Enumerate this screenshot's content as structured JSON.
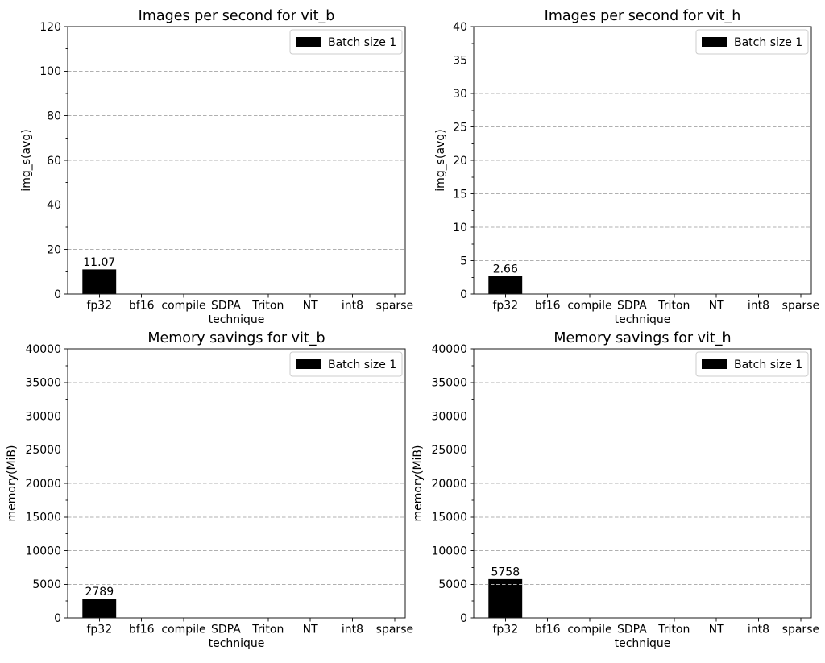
{
  "figure": {
    "description": "2x2 grid of bar charts benchmarking ViT models",
    "colors": {
      "background": "#ffffff",
      "bar": "#000000",
      "grid": "#b0b0b0",
      "spine": "#1a1a1a",
      "text": "#000000",
      "legend_border": "#cccccc",
      "legend_background": "#ffffff"
    }
  },
  "chart_data": [
    {
      "id": "images-per-second-vit_b",
      "type": "bar",
      "title": "Images per second for vit_b",
      "xlabel": "technique",
      "ylabel": "img_s(avg)",
      "categories": [
        "fp32",
        "bf16",
        "compile",
        "SDPA",
        "Triton",
        "NT",
        "int8",
        "sparse"
      ],
      "ylim": [
        0,
        120
      ],
      "yticks": [
        0,
        20,
        40,
        60,
        80,
        100,
        120
      ],
      "grid": true,
      "legend": {
        "label": "Batch size 1",
        "position": "upper right"
      },
      "bars": [
        {
          "category": "fp32",
          "value": 11.07,
          "label": "11.07"
        }
      ]
    },
    {
      "id": "images-per-second-vit_h",
      "type": "bar",
      "title": "Images per second for vit_h",
      "xlabel": "technique",
      "ylabel": "img_s(avg)",
      "categories": [
        "fp32",
        "bf16",
        "compile",
        "SDPA",
        "Triton",
        "NT",
        "int8",
        "sparse"
      ],
      "ylim": [
        0,
        40
      ],
      "yticks": [
        0,
        5,
        10,
        15,
        20,
        25,
        30,
        35,
        40
      ],
      "grid": true,
      "legend": {
        "label": "Batch size 1",
        "position": "upper right"
      },
      "bars": [
        {
          "category": "fp32",
          "value": 2.66,
          "label": "2.66"
        }
      ]
    },
    {
      "id": "memory-savings-vit_b",
      "type": "bar",
      "title": "Memory savings for vit_b",
      "xlabel": "technique",
      "ylabel": "memory(MiB)",
      "categories": [
        "fp32",
        "bf16",
        "compile",
        "SDPA",
        "Triton",
        "NT",
        "int8",
        "sparse"
      ],
      "ylim": [
        0,
        40000
      ],
      "yticks": [
        0,
        5000,
        10000,
        15000,
        20000,
        25000,
        30000,
        35000,
        40000
      ],
      "grid": true,
      "legend": {
        "label": "Batch size 1",
        "position": "upper right"
      },
      "bars": [
        {
          "category": "fp32",
          "value": 2789,
          "label": "2789"
        }
      ]
    },
    {
      "id": "memory-savings-vit_h",
      "type": "bar",
      "title": "Memory savings for vit_h",
      "xlabel": "technique",
      "ylabel": "memory(MiB)",
      "categories": [
        "fp32",
        "bf16",
        "compile",
        "SDPA",
        "Triton",
        "NT",
        "int8",
        "sparse"
      ],
      "ylim": [
        0,
        40000
      ],
      "yticks": [
        0,
        5000,
        10000,
        15000,
        20000,
        25000,
        30000,
        35000,
        40000
      ],
      "grid": true,
      "legend": {
        "label": "Batch size 1",
        "position": "upper right"
      },
      "bars": [
        {
          "category": "fp32",
          "value": 5758,
          "label": "5758"
        }
      ]
    }
  ]
}
